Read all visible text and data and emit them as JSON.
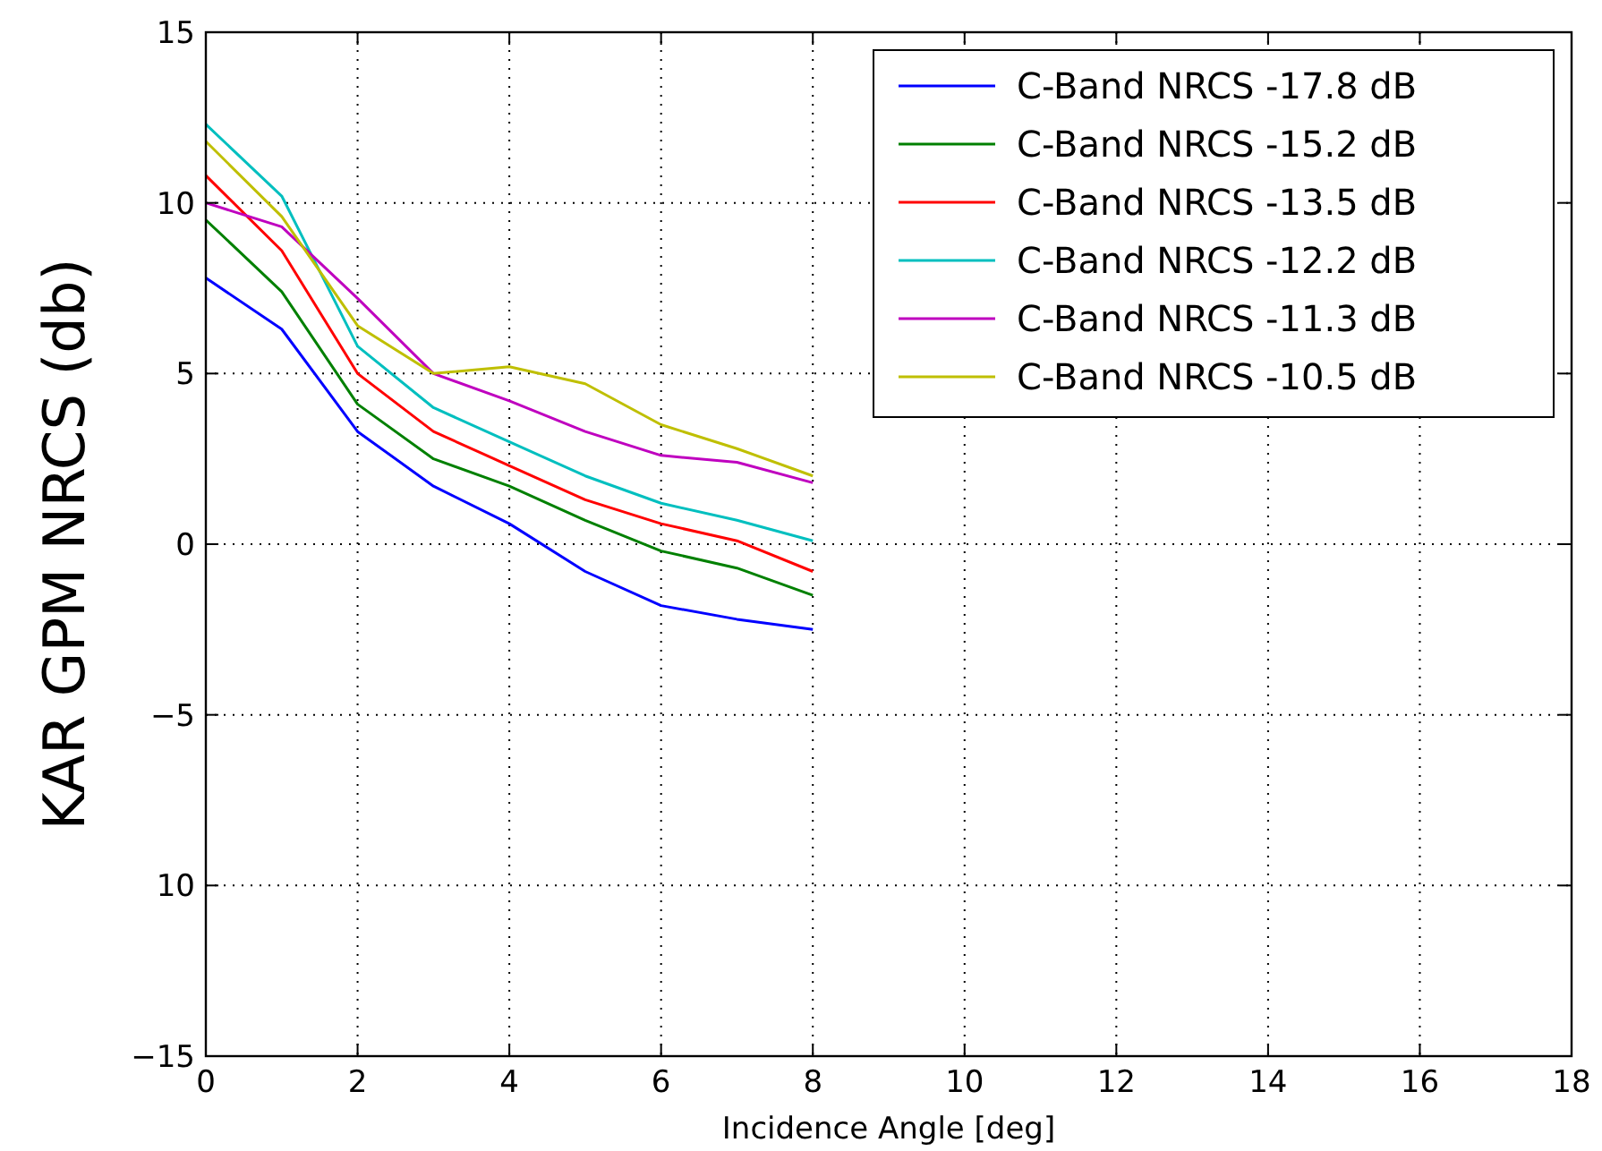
{
  "chart_data": {
    "type": "line",
    "xlabel": "Incidence Angle [deg]",
    "ylabel": "KAR GPM NRCS (db)",
    "x": [
      0,
      1,
      2,
      3,
      4,
      5,
      6,
      7,
      8
    ],
    "series": [
      {
        "name": "C-Band NRCS -17.8 dB",
        "color": "#0000ff",
        "values": [
          7.8,
          6.3,
          3.3,
          1.7,
          0.6,
          -0.8,
          -1.8,
          -2.2,
          -2.5
        ]
      },
      {
        "name": "C-Band NRCS -15.2 dB",
        "color": "#008000",
        "values": [
          9.5,
          7.4,
          4.1,
          2.5,
          1.7,
          0.7,
          -0.2,
          -0.7,
          -1.5
        ]
      },
      {
        "name": "C-Band NRCS -13.5 dB",
        "color": "#ff0000",
        "values": [
          10.8,
          8.6,
          5.0,
          3.3,
          2.3,
          1.3,
          0.6,
          0.1,
          -0.8
        ]
      },
      {
        "name": "C-Band NRCS -12.2 dB",
        "color": "#00bfbf",
        "values": [
          12.3,
          10.2,
          5.8,
          4.0,
          3.0,
          2.0,
          1.2,
          0.7,
          0.1
        ]
      },
      {
        "name": "C-Band NRCS -11.3 dB",
        "color": "#bf00bf",
        "values": [
          10.0,
          9.3,
          7.2,
          5.0,
          4.2,
          3.3,
          2.6,
          2.4,
          1.8
        ]
      },
      {
        "name": "C-Band NRCS -10.5 dB",
        "color": "#bfbf00",
        "values": [
          11.8,
          9.6,
          6.4,
          5.0,
          5.2,
          4.7,
          3.5,
          2.8,
          2.0
        ]
      }
    ],
    "xlim": [
      0,
      18
    ],
    "xticks": [
      0,
      2,
      4,
      6,
      8,
      10,
      12,
      14,
      16,
      18
    ],
    "ylim": [
      -15,
      15
    ],
    "yticks": [
      {
        "value": -15,
        "label": "−15"
      },
      {
        "value": -10,
        "label": "10"
      },
      {
        "value": -5,
        "label": "−5"
      },
      0,
      5,
      10,
      15
    ],
    "grid": true,
    "legend": "top right",
    "marker": "none",
    "line_style": "solid"
  }
}
